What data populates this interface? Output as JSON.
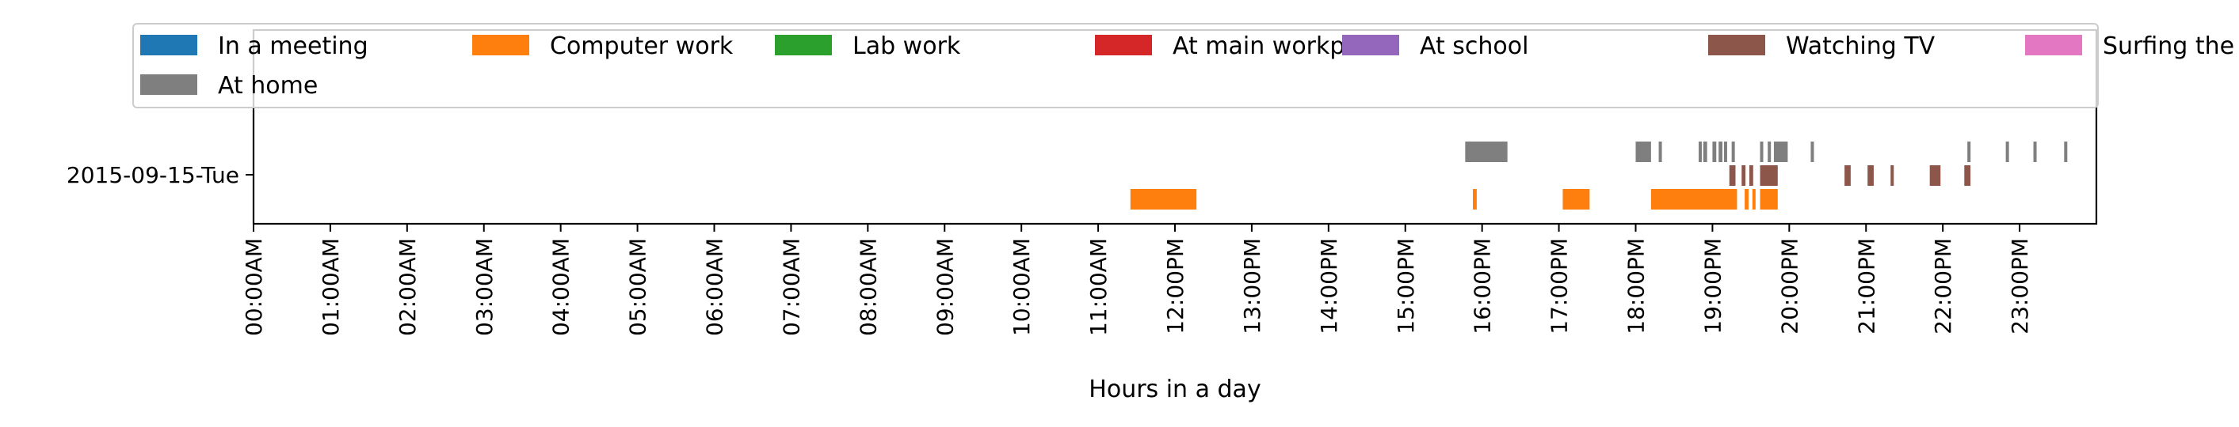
{
  "chart_data": {
    "type": "timeline",
    "title": "",
    "xlabel": "Hours in a day",
    "ylabel": "",
    "categories": [
      "2015-09-15-Tue"
    ],
    "xlim": [
      0,
      24
    ],
    "x_ticks": [
      {
        "value": 0,
        "label": "00:00AM"
      },
      {
        "value": 1,
        "label": "01:00AM"
      },
      {
        "value": 2,
        "label": "02:00AM"
      },
      {
        "value": 3,
        "label": "03:00AM"
      },
      {
        "value": 4,
        "label": "04:00AM"
      },
      {
        "value": 5,
        "label": "05:00AM"
      },
      {
        "value": 6,
        "label": "06:00AM"
      },
      {
        "value": 7,
        "label": "07:00AM"
      },
      {
        "value": 8,
        "label": "08:00AM"
      },
      {
        "value": 9,
        "label": "09:00AM"
      },
      {
        "value": 10,
        "label": "10:00AM"
      },
      {
        "value": 11,
        "label": "11:00AM"
      },
      {
        "value": 12,
        "label": "12:00PM"
      },
      {
        "value": 13,
        "label": "13:00PM"
      },
      {
        "value": 14,
        "label": "14:00PM"
      },
      {
        "value": 15,
        "label": "15:00PM"
      },
      {
        "value": 16,
        "label": "16:00PM"
      },
      {
        "value": 17,
        "label": "17:00PM"
      },
      {
        "value": 18,
        "label": "18:00PM"
      },
      {
        "value": 19,
        "label": "19:00PM"
      },
      {
        "value": 20,
        "label": "20:00PM"
      },
      {
        "value": 21,
        "label": "21:00PM"
      },
      {
        "value": 22,
        "label": "22:00PM"
      },
      {
        "value": 23,
        "label": "23:00PM"
      }
    ],
    "grid": false,
    "legend_position": "top",
    "series": [
      {
        "name": "In a meeting",
        "color": "#1f77b4",
        "lane": 6,
        "intervals": []
      },
      {
        "name": "Computer work",
        "color": "#ff7f0e",
        "lane": 0,
        "intervals": [
          [
            11.42,
            12.28
          ],
          [
            15.88,
            15.93
          ],
          [
            17.05,
            17.4
          ],
          [
            18.2,
            19.32
          ],
          [
            19.42,
            19.47
          ],
          [
            19.52,
            19.55
          ],
          [
            19.62,
            19.85
          ]
        ]
      },
      {
        "name": "Lab work",
        "color": "#2ca02c",
        "lane": 5,
        "intervals": []
      },
      {
        "name": "At main workplace",
        "color": "#d62728",
        "lane": 4,
        "intervals": []
      },
      {
        "name": "At school",
        "color": "#9467bd",
        "lane": 3,
        "intervals": []
      },
      {
        "name": "Watching TV",
        "color": "#8c564b",
        "lane": 1,
        "intervals": [
          [
            19.22,
            19.3
          ],
          [
            19.38,
            19.43
          ],
          [
            19.48,
            19.53
          ],
          [
            19.62,
            19.85
          ],
          [
            20.72,
            20.8
          ],
          [
            21.02,
            21.1
          ],
          [
            21.32,
            21.36
          ],
          [
            21.83,
            21.97
          ],
          [
            22.28,
            22.36
          ]
        ]
      },
      {
        "name": "Surfing the internet",
        "color": "#e377c2",
        "lane": 7,
        "intervals": []
      },
      {
        "name": "At home",
        "color": "#7f7f7f",
        "lane": 2,
        "intervals": [
          [
            15.78,
            16.33
          ],
          [
            18.0,
            18.2
          ],
          [
            18.3,
            18.34
          ],
          [
            18.82,
            18.86
          ],
          [
            18.88,
            18.93
          ],
          [
            19.0,
            19.05
          ],
          [
            19.08,
            19.13
          ],
          [
            19.15,
            19.19
          ],
          [
            19.25,
            19.29
          ],
          [
            19.62,
            19.66
          ],
          [
            19.72,
            19.76
          ],
          [
            19.8,
            19.98
          ],
          [
            20.28,
            20.32
          ],
          [
            22.32,
            22.35
          ],
          [
            22.82,
            22.86
          ],
          [
            23.18,
            23.22
          ],
          [
            23.58,
            23.62
          ]
        ]
      }
    ]
  }
}
